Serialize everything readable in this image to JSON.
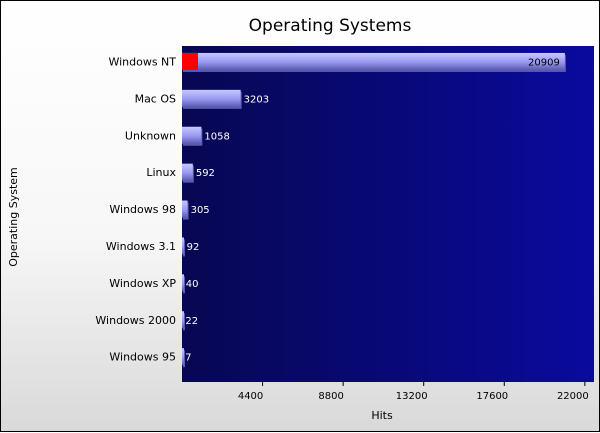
{
  "chart_data": {
    "type": "bar",
    "orientation": "horizontal",
    "title": "Operating Systems",
    "xlabel": "Hits",
    "ylabel": "Operating System",
    "categories": [
      "Windows NT",
      "Mac OS",
      "Unknown",
      "Linux",
      "Windows 98",
      "Windows 3.1",
      "Windows XP",
      "Windows 2000",
      "Windows 95"
    ],
    "values": [
      20909,
      3203,
      1058,
      592,
      305,
      92,
      40,
      22,
      7
    ],
    "xlim": [
      0,
      22500
    ],
    "xticks": [
      4400,
      8800,
      13200,
      17600,
      22000
    ],
    "grid": false,
    "legend": "none"
  },
  "colors": {
    "plot_background_left": "#070752",
    "plot_background_right": "#0a0a9e",
    "bar_fill": "#9898f2",
    "bar_highlight": "#c8c8ff",
    "bar_shadow": "#5a5ab0",
    "highlight_marker": "#ff0000"
  }
}
